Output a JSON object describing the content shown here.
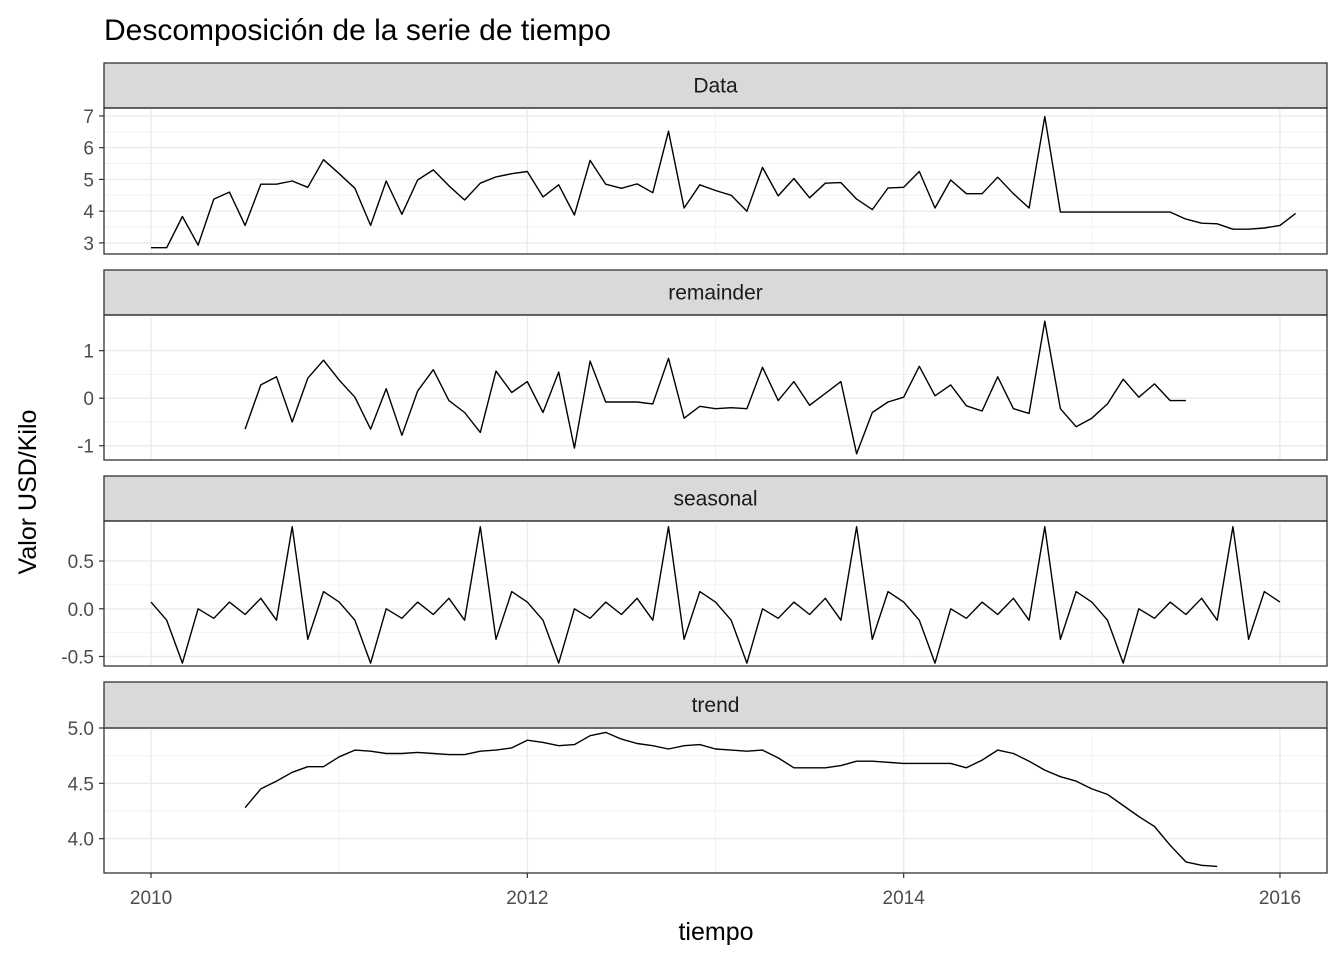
{
  "chart_data": {
    "type": "line",
    "title": "Descomposición de la serie de tiempo",
    "xlabel": "tiempo",
    "ylabel": "Valor USD/Kilo",
    "xlim": [
      2009.75,
      2016.25
    ],
    "x_ticks": [
      2010,
      2012,
      2014,
      2016
    ],
    "x_tick_labels": [
      "2010",
      "2012",
      "2014",
      "2016"
    ],
    "grid": true,
    "line_color": "#000000",
    "strip_fill": "#d9d9d9",
    "grid_color": "#ebebeb",
    "panels": [
      {
        "name": "Data",
        "ylim": [
          2.65,
          7.25
        ],
        "y_ticks": [
          3,
          4,
          5,
          6,
          7
        ],
        "y_tick_labels": [
          "3",
          "4",
          "5",
          "6",
          "7"
        ],
        "x_start": 2010.0,
        "values": [
          2.85,
          2.85,
          3.83,
          2.93,
          4.38,
          4.6,
          3.55,
          4.85,
          4.85,
          4.95,
          4.75,
          5.62,
          5.18,
          4.72,
          3.55,
          4.95,
          3.9,
          4.98,
          5.3,
          4.8,
          4.35,
          4.88,
          5.08,
          5.18,
          5.25,
          4.45,
          4.83,
          3.88,
          5.6,
          4.85,
          4.72,
          4.86,
          4.58,
          6.52,
          4.1,
          4.83,
          4.65,
          4.5,
          4.0,
          5.38,
          4.48,
          5.03,
          4.42,
          4.88,
          4.9,
          4.38,
          4.05,
          4.73,
          4.75,
          5.25,
          4.1,
          4.98,
          4.55,
          4.55,
          5.07,
          4.55,
          4.1,
          6.98,
          3.97,
          3.97,
          3.97,
          3.97,
          3.97,
          3.97,
          3.97,
          3.97,
          3.75,
          3.62,
          3.6,
          3.43,
          3.43,
          3.47,
          3.55,
          3.93
        ]
      },
      {
        "name": "remainder",
        "ylim": [
          -1.3,
          1.75
        ],
        "y_ticks": [
          -1,
          0,
          1
        ],
        "y_tick_labels": [
          "-1",
          "0",
          "1"
        ],
        "x_start": 2010.5,
        "values": [
          -0.65,
          0.28,
          0.45,
          -0.5,
          0.42,
          0.8,
          0.38,
          0.02,
          -0.65,
          0.2,
          -0.78,
          0.15,
          0.6,
          -0.05,
          -0.3,
          -0.72,
          0.57,
          0.12,
          0.35,
          -0.3,
          0.55,
          -1.05,
          0.78,
          -0.08,
          -0.08,
          -0.08,
          -0.12,
          0.84,
          -0.42,
          -0.17,
          -0.22,
          -0.2,
          -0.22,
          0.65,
          -0.05,
          0.35,
          -0.15,
          0.1,
          0.35,
          -1.17,
          -0.3,
          -0.08,
          0.02,
          0.67,
          0.05,
          0.28,
          -0.16,
          -0.27,
          0.45,
          -0.22,
          -0.32,
          1.62,
          -0.22,
          -0.6,
          -0.42,
          -0.12,
          0.4,
          0.02,
          0.3,
          -0.05,
          -0.05
        ]
      },
      {
        "name": "seasonal",
        "ylim": [
          -0.6,
          0.92
        ],
        "y_ticks": [
          -0.5,
          0.0,
          0.5
        ],
        "y_tick_labels": [
          "-0.5",
          "0.0",
          "0.5"
        ],
        "x_start": 2010.0,
        "values": [
          0.07,
          -0.12,
          -0.57,
          0.0,
          -0.1,
          0.07,
          -0.06,
          0.11,
          -0.12,
          0.86,
          -0.32,
          0.18,
          0.07,
          -0.12,
          -0.57,
          0.0,
          -0.1,
          0.07,
          -0.06,
          0.11,
          -0.12,
          0.86,
          -0.32,
          0.18,
          0.07,
          -0.12,
          -0.57,
          0.0,
          -0.1,
          0.07,
          -0.06,
          0.11,
          -0.12,
          0.86,
          -0.32,
          0.18,
          0.07,
          -0.12,
          -0.57,
          0.0,
          -0.1,
          0.07,
          -0.06,
          0.11,
          -0.12,
          0.86,
          -0.32,
          0.18,
          0.07,
          -0.12,
          -0.57,
          0.0,
          -0.1,
          0.07,
          -0.06,
          0.11,
          -0.12,
          0.86,
          -0.32,
          0.18,
          0.07,
          -0.12,
          -0.57,
          0.0,
          -0.1,
          0.07,
          -0.06,
          0.11,
          -0.12,
          0.86,
          -0.32,
          0.18,
          0.07
        ]
      },
      {
        "name": "trend",
        "ylim": [
          3.69,
          5.0
        ],
        "y_ticks": [
          4.0,
          4.5,
          5.0
        ],
        "y_tick_labels": [
          "4.0",
          "4.5",
          "5.0"
        ],
        "x_start": 2010.5,
        "values": [
          4.28,
          4.45,
          4.52,
          4.6,
          4.65,
          4.65,
          4.74,
          4.8,
          4.79,
          4.77,
          4.77,
          4.78,
          4.77,
          4.76,
          4.76,
          4.79,
          4.8,
          4.82,
          4.89,
          4.87,
          4.84,
          4.85,
          4.93,
          4.96,
          4.9,
          4.86,
          4.84,
          4.81,
          4.84,
          4.85,
          4.81,
          4.8,
          4.79,
          4.8,
          4.73,
          4.64,
          4.64,
          4.64,
          4.66,
          4.7,
          4.7,
          4.69,
          4.68,
          4.68,
          4.68,
          4.68,
          4.64,
          4.71,
          4.8,
          4.77,
          4.7,
          4.62,
          4.56,
          4.52,
          4.45,
          4.4,
          4.3,
          4.2,
          4.11,
          3.94,
          3.79,
          3.76,
          3.75
        ]
      }
    ]
  }
}
